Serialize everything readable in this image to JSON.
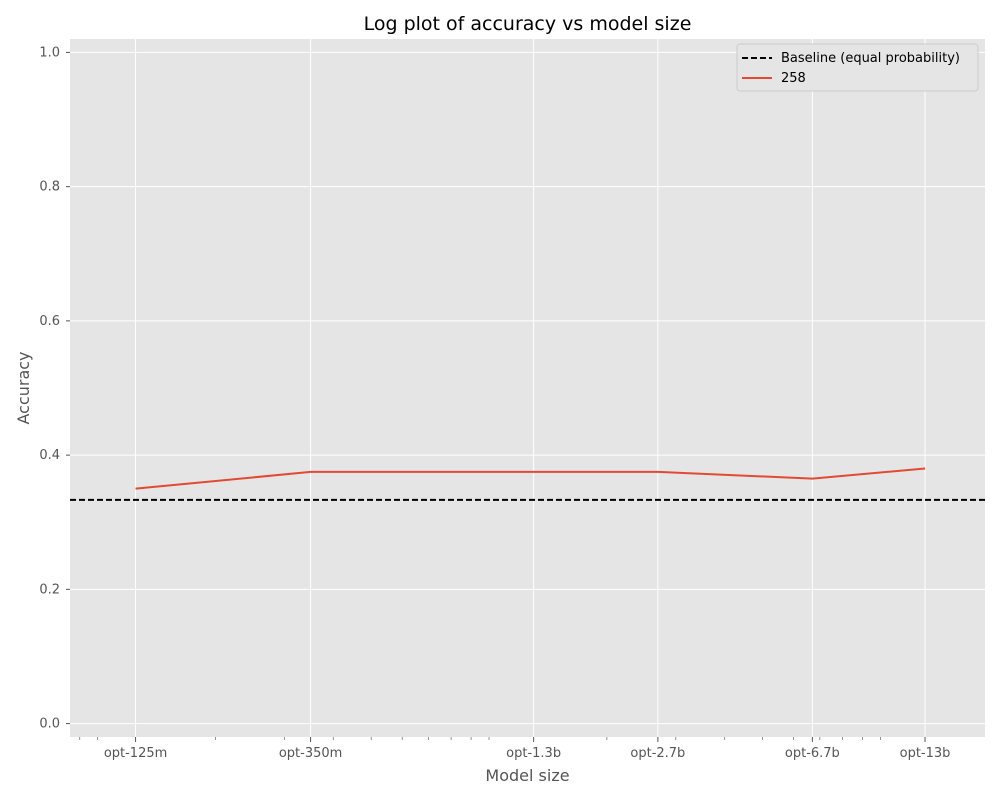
{
  "chart_data": {
    "type": "line",
    "title": "Log plot of accuracy vs model size",
    "xlabel": "Model size",
    "ylabel": "Accuracy",
    "x_scale": "log",
    "x_unit": "parameters",
    "categories": [
      "opt-125m",
      "opt-350m",
      "opt-1.3b",
      "opt-2.7b",
      "opt-6.7b",
      "opt-13b"
    ],
    "x": [
      125000000,
      350000000,
      1300000000,
      2700000000,
      6700000000,
      13000000000
    ],
    "xlim": [
      85000000,
      18500000000
    ],
    "ylim": [
      -0.02,
      1.02
    ],
    "yticks": [
      0.0,
      0.2,
      0.4,
      0.6,
      0.8,
      1.0
    ],
    "grid": true,
    "legend_position": "top-right",
    "baseline": {
      "name": "Baseline (equal probability)",
      "value": 0.3333,
      "color": "#000000",
      "style": "dashed"
    },
    "series": [
      {
        "name": "258",
        "color": "#E24A33",
        "values": [
          0.35,
          0.375,
          0.375,
          0.375,
          0.365,
          0.38
        ]
      }
    ]
  }
}
